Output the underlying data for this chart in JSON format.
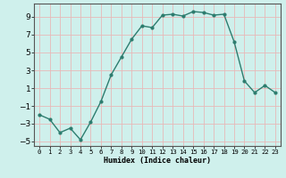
{
  "x": [
    0,
    1,
    2,
    3,
    4,
    5,
    6,
    7,
    8,
    9,
    10,
    11,
    12,
    13,
    14,
    15,
    16,
    17,
    18,
    19,
    20,
    21,
    22,
    23
  ],
  "y": [
    -2,
    -2.5,
    -4,
    -3.5,
    -4.8,
    -2.8,
    -0.5,
    2.5,
    4.5,
    6.5,
    8.0,
    7.8,
    9.2,
    9.3,
    9.1,
    9.6,
    9.5,
    9.2,
    9.3,
    6.2,
    1.8,
    0.5,
    1.3,
    0.5
  ],
  "line_color": "#2d7d6f",
  "marker": "o",
  "markersize": 2.0,
  "linewidth": 1.0,
  "xlabel": "Humidex (Indice chaleur)",
  "xlim": [
    -0.5,
    23.5
  ],
  "ylim": [
    -5.5,
    10.5
  ],
  "yticks": [
    -5,
    -3,
    -1,
    1,
    3,
    5,
    7,
    9
  ],
  "xticks": [
    0,
    1,
    2,
    3,
    4,
    5,
    6,
    7,
    8,
    9,
    10,
    11,
    12,
    13,
    14,
    15,
    16,
    17,
    18,
    19,
    20,
    21,
    22,
    23
  ],
  "xtick_labels": [
    "0",
    "1",
    "2",
    "3",
    "4",
    "5",
    "6",
    "7",
    "8",
    "9",
    "10",
    "11",
    "12",
    "13",
    "14",
    "15",
    "16",
    "17",
    "18",
    "19",
    "20",
    "21",
    "22",
    "23"
  ],
  "bg_color": "#cff0ec",
  "grid_color": "#e8b8b8",
  "border_color": "#555555",
  "xlabel_fontsize": 6.0,
  "ytick_fontsize": 6.5,
  "xtick_fontsize": 5.2
}
